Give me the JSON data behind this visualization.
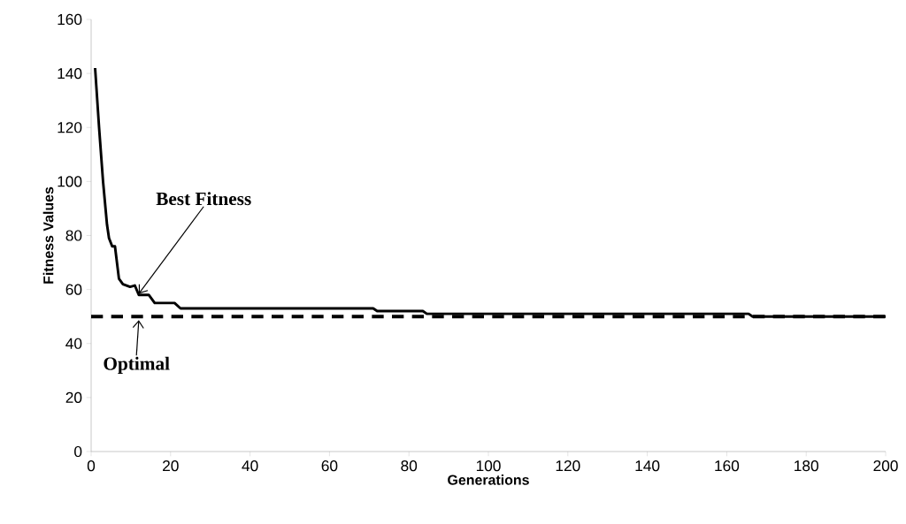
{
  "chart_data": {
    "type": "line",
    "xlabel": "Generations",
    "ylabel": "Fitness Values",
    "xlim": [
      0,
      200
    ],
    "ylim": [
      0,
      160
    ],
    "xticks": [
      0,
      20,
      40,
      60,
      80,
      100,
      120,
      140,
      160,
      180,
      200
    ],
    "yticks": [
      0,
      20,
      40,
      60,
      80,
      100,
      120,
      140,
      160
    ],
    "marker": "none",
    "series": [
      {
        "color": "#000000",
        "line_style": "solid",
        "x": [
          1,
          2,
          3,
          4,
          4.5,
          5.3,
          6,
          7,
          8,
          9.8,
          11,
          12,
          14.5,
          16,
          21,
          22.5,
          71,
          72,
          83.5,
          84.5,
          165.5,
          166.5,
          200
        ],
        "values": [
          142,
          120,
          100,
          84,
          79,
          76,
          76,
          64,
          62,
          61,
          61.5,
          58,
          58,
          55,
          55,
          53,
          53,
          52,
          52,
          51,
          51,
          50,
          50
        ]
      },
      {
        "color": "#000000",
        "line_style": "dashed",
        "x": [
          0,
          200
        ],
        "values": [
          50,
          50
        ]
      }
    ],
    "annotations": [
      {
        "text": "Best Fitness",
        "x": 12,
        "y": 58
      },
      {
        "text": "Optimal",
        "x": 12,
        "y": 50
      }
    ]
  }
}
